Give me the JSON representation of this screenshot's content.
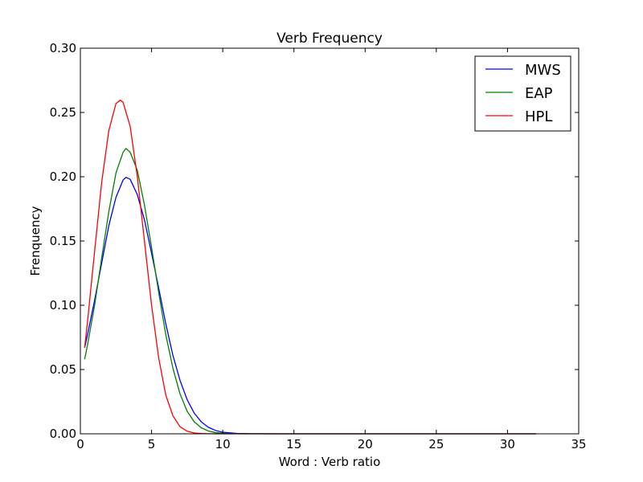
{
  "chart_data": {
    "type": "line",
    "title": "Verb Frequency",
    "xlabel": "Word : Verb ratio",
    "ylabel": "Frenquency",
    "xlim": [
      0,
      35
    ],
    "ylim": [
      0,
      0.3
    ],
    "xticks": [
      0,
      5,
      10,
      15,
      20,
      25,
      30,
      35
    ],
    "xtick_labels": [
      "0",
      "5",
      "10",
      "15",
      "20",
      "25",
      "30",
      "35"
    ],
    "yticks": [
      0,
      0.05,
      0.1,
      0.15,
      0.2,
      0.25,
      0.3
    ],
    "ytick_labels": [
      "0.00",
      "0.05",
      "0.10",
      "0.15",
      "0.20",
      "0.25",
      "0.30"
    ],
    "grid": false,
    "legend_position": "top-right",
    "series": [
      {
        "name": "MWS",
        "color": "#0000ff",
        "x": [
          0.3,
          0.5,
          1,
          1.5,
          2,
          2.5,
          3,
          3.2,
          3.5,
          4,
          4.5,
          5,
          5.5,
          6,
          6.5,
          7,
          7.5,
          8,
          8.5,
          9,
          9.5,
          10,
          11,
          12,
          14,
          16,
          20,
          25,
          30,
          32
        ],
        "y": [
          0.067,
          0.077,
          0.104,
          0.133,
          0.162,
          0.184,
          0.1975,
          0.1995,
          0.198,
          0.186,
          0.1665,
          0.1405,
          0.1135,
          0.0855,
          0.061,
          0.0415,
          0.0265,
          0.016,
          0.0092,
          0.005,
          0.0026,
          0.0012,
          0.0003,
          0.0001,
          0,
          0,
          0,
          0,
          0,
          0
        ]
      },
      {
        "name": "EAP",
        "color": "#008000",
        "x": [
          0.3,
          0.5,
          1,
          1.5,
          2,
          2.5,
          3,
          3.2,
          3.5,
          4,
          4.5,
          5,
          5.5,
          6,
          6.5,
          7,
          7.5,
          8,
          8.5,
          9,
          9.5,
          10,
          11,
          12,
          14,
          16,
          20,
          25,
          30,
          32
        ],
        "y": [
          0.058,
          0.069,
          0.1,
          0.137,
          0.173,
          0.203,
          0.219,
          0.222,
          0.219,
          0.205,
          0.178,
          0.145,
          0.11,
          0.077,
          0.051,
          0.031,
          0.0175,
          0.0093,
          0.0046,
          0.0021,
          0.0009,
          0.0004,
          0.0001,
          0,
          0,
          0,
          0,
          0,
          0,
          0
        ]
      },
      {
        "name": "HPL",
        "color": "#ff0000",
        "x": [
          0.3,
          0.5,
          1,
          1.5,
          2,
          2.5,
          2.8,
          3,
          3.5,
          4,
          4.5,
          5,
          5.5,
          6,
          6.5,
          7,
          7.5,
          8,
          8.5,
          9,
          9.5,
          10,
          11,
          12,
          14,
          16,
          20,
          25,
          30,
          32
        ],
        "y": [
          0.067,
          0.087,
          0.142,
          0.196,
          0.236,
          0.257,
          0.2595,
          0.258,
          0.239,
          0.2,
          0.15,
          0.1,
          0.059,
          0.03,
          0.014,
          0.0055,
          0.002,
          0.0006,
          0.0002,
          0.0001,
          0,
          0,
          0,
          0,
          0,
          0,
          0,
          0,
          0,
          0
        ]
      }
    ]
  }
}
